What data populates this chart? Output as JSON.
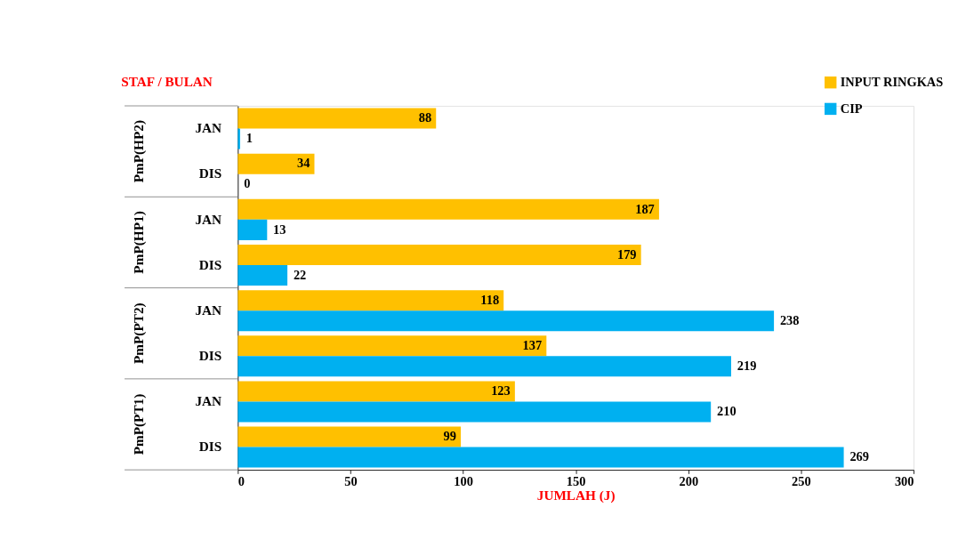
{
  "chart_data": {
    "type": "bar",
    "orientation": "horizontal",
    "ylabel": "STAF / BULAN",
    "xlabel": "JUMLAH (J)",
    "categories": [
      "JAN",
      "DIS",
      "JAN",
      "DIS",
      "JAN",
      "DIS",
      "JAN",
      "DIS"
    ],
    "annotations": [
      "PmP(HP2)",
      "PmP(HP1)",
      "PmP(PT2)",
      "PmP(PT1)"
    ],
    "series": [
      {
        "name": "INPUT RINGKAS",
        "color": "#ffc000",
        "values": [
          88,
          34,
          187,
          179,
          118,
          137,
          123,
          99
        ]
      },
      {
        "name": "CIP",
        "color": "#00b0f0",
        "values": [
          1,
          0,
          13,
          22,
          238,
          219,
          210,
          269
        ]
      }
    ],
    "xlim": [
      0,
      300
    ],
    "xticks": [
      0,
      50,
      100,
      150,
      200,
      250,
      300
    ],
    "data_labels": true,
    "grid": false,
    "legend": "top right"
  }
}
